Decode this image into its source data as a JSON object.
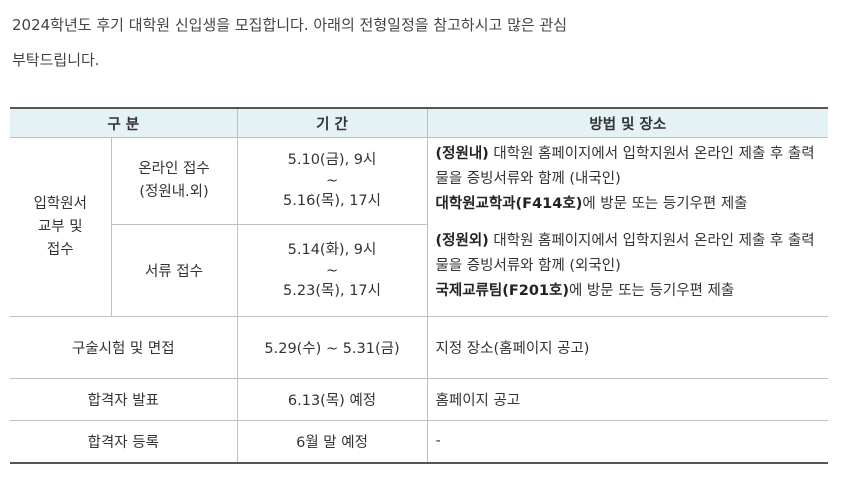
{
  "intro": {
    "line1": "2024학년도 후기 대학원 신입생을 모집합니다. 아래의 전형일정을 참고하시고 많은 관심",
    "line2": "부탁드립니다."
  },
  "table": {
    "headers": [
      "구 분",
      "기 간",
      "방법 및 장소"
    ],
    "application": {
      "group_label_1": "입학원서",
      "group_label_2": "교부 및",
      "group_label_3": "접수",
      "online_label_1": "온라인 접수",
      "online_label_2": "(정원내.외)",
      "online_start": "5.10(금), 9시",
      "online_tilde": "~",
      "online_end": "5.16(목), 17시",
      "docs_label": "서류 접수",
      "docs_start": "5.14(화), 9시",
      "docs_tilde": "~",
      "docs_end": "5.23(목), 17시",
      "method_in_tag": "(정원내)",
      "method_in_text": " 대학원 홈페이지에서 입학지원서 온라인 제출 후 출력물을 증빙서류와 함께 (내국인)",
      "method_in_place": "대학원교학과(F414호)",
      "method_in_tail": "에 방문 또는 등기우편 제출",
      "method_out_tag": "(정원외)",
      "method_out_text": " 대학원 홈페이지에서 입학지원서 온라인 제출 후 출력물을 증빙서류와 함께 (외국인)",
      "method_out_place": "국제교류팀(F201호)",
      "method_out_tail": "에 방문 또는 등기우편 제출"
    },
    "rows": [
      {
        "label": "구술시험 및 면접",
        "period": "5.29(수) ~ 5.31(금)",
        "method": "지정 장소(홈페이지 공고)"
      },
      {
        "label": "합격자 발표",
        "period": "6.13(목) 예정",
        "method": "홈페이지 공고"
      },
      {
        "label": "합격자 등록",
        "period": "6월 말 예정",
        "method": "-"
      }
    ]
  }
}
